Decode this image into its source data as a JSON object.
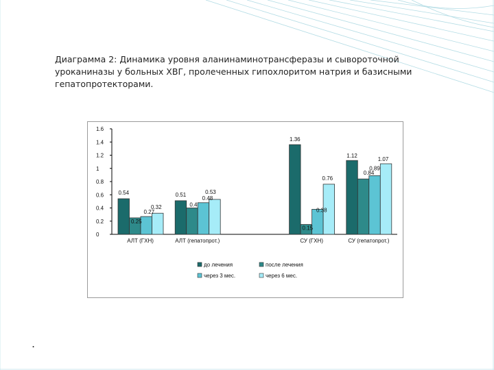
{
  "slide": {
    "caption": "Диаграмма 2:  Динамика уровня аланинаминотрансферазы и сывороточной\nуроканиназы у больных ХВГ, пролеченных гипохлоритом натрия и базисными\nгепатопротекторами.",
    "bullet": "."
  },
  "chart_data": {
    "type": "bar",
    "categories": [
      "АЛТ (ГХН)",
      "АЛТ (гепатопрот.)",
      "",
      "СУ (ГХН)",
      "СУ (гепатопрот.)"
    ],
    "series": [
      {
        "name": "до лечения",
        "color": "#1b6b6b",
        "values": [
          0.54,
          0.51,
          null,
          1.36,
          1.12
        ]
      },
      {
        "name": "после лечения",
        "color": "#2e8a8a",
        "values": [
          0.25,
          0.4,
          null,
          0.15,
          0.84
        ]
      },
      {
        "name": "через 3 мес.",
        "color": "#5cc4d4",
        "values": [
          0.27,
          0.48,
          null,
          0.38,
          0.89
        ]
      },
      {
        "name": "через 6 мес.",
        "color": "#a6ecf8",
        "values": [
          0.32,
          0.53,
          null,
          0.76,
          1.07
        ]
      }
    ],
    "data_labels": [
      [
        "0.54",
        "0.51",
        "",
        "1.36",
        "1.12"
      ],
      [
        "0.25",
        "0.4",
        "",
        "0.15",
        "0.84"
      ],
      [
        "0.27",
        "0.48",
        "",
        "0.38",
        "0.89"
      ],
      [
        "0.32",
        "0.53",
        "",
        "0.76",
        "1.07"
      ]
    ],
    "yticks": [
      "0",
      "0.2",
      "0.4",
      "0.6",
      "0.8",
      "1",
      "1.2",
      "1.4",
      "1.6"
    ],
    "ylim": [
      0,
      1.6
    ],
    "grid": false,
    "legend": "bottom"
  }
}
